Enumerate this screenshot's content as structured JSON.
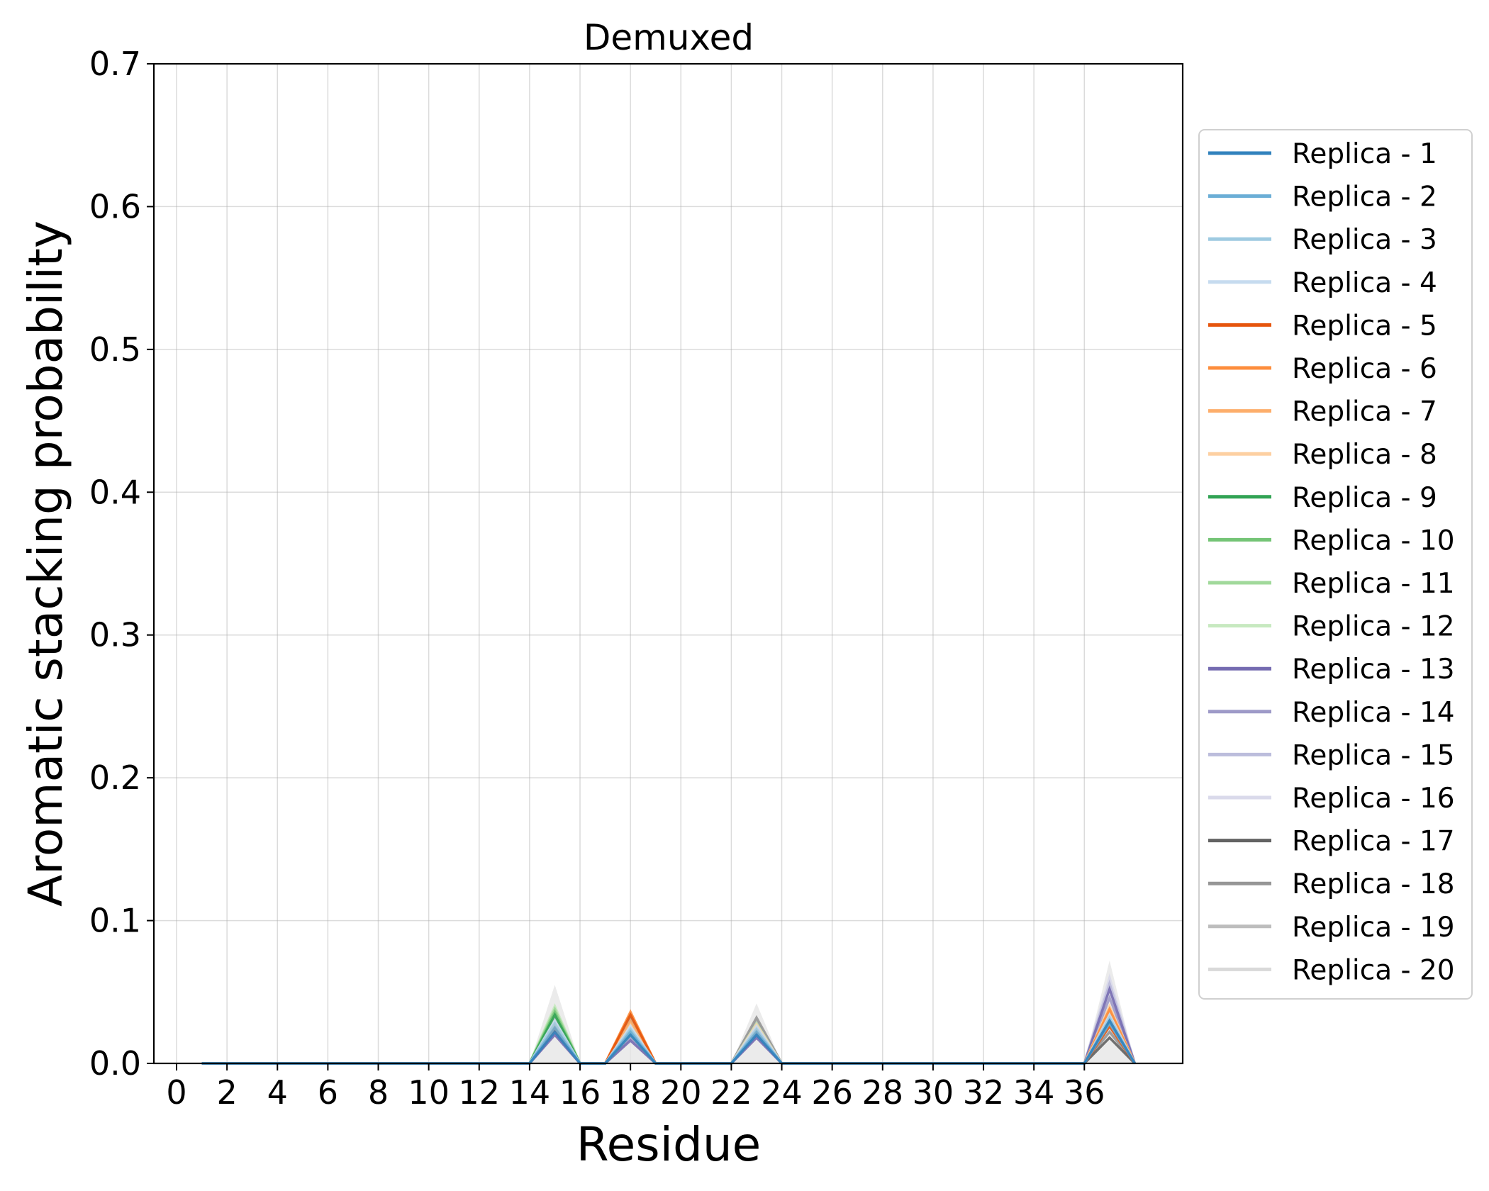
{
  "chart_data": {
    "type": "line",
    "title": "Demuxed",
    "xlabel": "Residue",
    "ylabel": "Aromatic stacking probability",
    "xlim": [
      -0.9,
      39.9
    ],
    "ylim": [
      0.0,
      0.7
    ],
    "xticks": [
      0,
      2,
      4,
      6,
      8,
      10,
      12,
      14,
      16,
      18,
      20,
      22,
      24,
      26,
      28,
      30,
      32,
      34,
      36
    ],
    "xtick_labels": [
      "0",
      "2",
      "4",
      "6",
      "8",
      "10",
      "12",
      "14",
      "16",
      "18",
      "20",
      "22",
      "24",
      "26",
      "28",
      "30",
      "32",
      "34",
      "36"
    ],
    "yticks": [
      0.0,
      0.1,
      0.2,
      0.3,
      0.4,
      0.5,
      0.6,
      0.7
    ],
    "ytick_labels": [
      "0.0",
      "0.1",
      "0.2",
      "0.3",
      "0.4",
      "0.5",
      "0.6",
      "0.7"
    ],
    "grid": true,
    "legend_position": "outside-right",
    "x": [
      1,
      2,
      3,
      4,
      5,
      6,
      7,
      8,
      9,
      10,
      11,
      12,
      13,
      14,
      15,
      16,
      17,
      18,
      19,
      20,
      21,
      22,
      23,
      24,
      25,
      26,
      27,
      28,
      29,
      30,
      31,
      32,
      33,
      34,
      35,
      36,
      37,
      38
    ],
    "band": {
      "color": "#e6e6e6",
      "upper": [
        0,
        0,
        0,
        0,
        0,
        0,
        0,
        0,
        0,
        0,
        0,
        0,
        0,
        0,
        0.055,
        0,
        0,
        0.038,
        0,
        0,
        0,
        0,
        0.042,
        0,
        0,
        0,
        0,
        0,
        0,
        0,
        0,
        0,
        0,
        0,
        0,
        0,
        0.072,
        0
      ]
    },
    "series": [
      {
        "name": "Replica - 1",
        "color": "#3182bd",
        "values": [
          0,
          0,
          0,
          0,
          0,
          0,
          0,
          0,
          0,
          0,
          0,
          0,
          0,
          0,
          0.022,
          0,
          0,
          0.02,
          0,
          0,
          0,
          0,
          0.02,
          0,
          0,
          0,
          0,
          0,
          0,
          0,
          0,
          0,
          0,
          0,
          0,
          0,
          0.03,
          0
        ]
      },
      {
        "name": "Replica - 2",
        "color": "#6baed6",
        "values": [
          0,
          0,
          0,
          0,
          0,
          0,
          0,
          0,
          0,
          0,
          0,
          0,
          0,
          0,
          0.025,
          0,
          0,
          0.022,
          0,
          0,
          0,
          0,
          0.022,
          0,
          0,
          0,
          0,
          0,
          0,
          0,
          0,
          0,
          0,
          0,
          0,
          0,
          0.028,
          0
        ]
      },
      {
        "name": "Replica - 3",
        "color": "#9ecae1",
        "values": [
          0,
          0,
          0,
          0,
          0,
          0,
          0,
          0,
          0,
          0,
          0,
          0,
          0,
          0,
          0.028,
          0,
          0,
          0.024,
          0,
          0,
          0,
          0,
          0.024,
          0,
          0,
          0,
          0,
          0,
          0,
          0,
          0,
          0,
          0,
          0,
          0,
          0,
          0.032,
          0
        ]
      },
      {
        "name": "Replica - 4",
        "color": "#c6dbef",
        "values": [
          0,
          0,
          0,
          0,
          0,
          0,
          0,
          0,
          0,
          0,
          0,
          0,
          0,
          0,
          0.03,
          0,
          0,
          0.026,
          0,
          0,
          0,
          0,
          0.026,
          0,
          0,
          0,
          0,
          0,
          0,
          0,
          0,
          0,
          0,
          0,
          0,
          0,
          0.034,
          0
        ]
      },
      {
        "name": "Replica - 5",
        "color": "#e6550d",
        "values": [
          0,
          0,
          0,
          0,
          0,
          0,
          0,
          0,
          0,
          0,
          0,
          0,
          0,
          0,
          0.024,
          0,
          0,
          0.034,
          0,
          0,
          0,
          0,
          0.022,
          0,
          0,
          0,
          0,
          0,
          0,
          0,
          0,
          0,
          0,
          0,
          0,
          0,
          0.026,
          0
        ]
      },
      {
        "name": "Replica - 6",
        "color": "#fd8d3c",
        "values": [
          0,
          0,
          0,
          0,
          0,
          0,
          0,
          0,
          0,
          0,
          0,
          0,
          0,
          0,
          0.026,
          0,
          0,
          0.036,
          0,
          0,
          0,
          0,
          0.024,
          0,
          0,
          0,
          0,
          0,
          0,
          0,
          0,
          0,
          0,
          0,
          0,
          0,
          0.038,
          0
        ]
      },
      {
        "name": "Replica - 7",
        "color": "#fdae6b",
        "values": [
          0,
          0,
          0,
          0,
          0,
          0,
          0,
          0,
          0,
          0,
          0,
          0,
          0,
          0,
          0.027,
          0,
          0,
          0.03,
          0,
          0,
          0,
          0,
          0.025,
          0,
          0,
          0,
          0,
          0,
          0,
          0,
          0,
          0,
          0,
          0,
          0,
          0,
          0.036,
          0
        ]
      },
      {
        "name": "Replica - 8",
        "color": "#fdd0a2",
        "values": [
          0,
          0,
          0,
          0,
          0,
          0,
          0,
          0,
          0,
          0,
          0,
          0,
          0,
          0,
          0.029,
          0,
          0,
          0.028,
          0,
          0,
          0,
          0,
          0.027,
          0,
          0,
          0,
          0,
          0,
          0,
          0,
          0,
          0,
          0,
          0,
          0,
          0,
          0.04,
          0
        ]
      },
      {
        "name": "Replica - 9",
        "color": "#31a354",
        "values": [
          0,
          0,
          0,
          0,
          0,
          0,
          0,
          0,
          0,
          0,
          0,
          0,
          0,
          0,
          0.034,
          0,
          0,
          0.024,
          0,
          0,
          0,
          0,
          0.024,
          0,
          0,
          0,
          0,
          0,
          0,
          0,
          0,
          0,
          0,
          0,
          0,
          0,
          0.028,
          0
        ]
      },
      {
        "name": "Replica - 10",
        "color": "#74c476",
        "values": [
          0,
          0,
          0,
          0,
          0,
          0,
          0,
          0,
          0,
          0,
          0,
          0,
          0,
          0,
          0.036,
          0,
          0,
          0.022,
          0,
          0,
          0,
          0,
          0.022,
          0,
          0,
          0,
          0,
          0,
          0,
          0,
          0,
          0,
          0,
          0,
          0,
          0,
          0.03,
          0
        ]
      },
      {
        "name": "Replica - 11",
        "color": "#a1d99b",
        "values": [
          0,
          0,
          0,
          0,
          0,
          0,
          0,
          0,
          0,
          0,
          0,
          0,
          0,
          0,
          0.038,
          0,
          0,
          0.02,
          0,
          0,
          0,
          0,
          0.026,
          0,
          0,
          0,
          0,
          0,
          0,
          0,
          0,
          0,
          0,
          0,
          0,
          0,
          0.032,
          0
        ]
      },
      {
        "name": "Replica - 12",
        "color": "#c7e9c0",
        "values": [
          0,
          0,
          0,
          0,
          0,
          0,
          0,
          0,
          0,
          0,
          0,
          0,
          0,
          0,
          0.04,
          0,
          0,
          0.024,
          0,
          0,
          0,
          0,
          0.028,
          0,
          0,
          0,
          0,
          0,
          0,
          0,
          0,
          0,
          0,
          0,
          0,
          0,
          0.034,
          0
        ]
      },
      {
        "name": "Replica - 13",
        "color": "#756bb1",
        "values": [
          0,
          0,
          0,
          0,
          0,
          0,
          0,
          0,
          0,
          0,
          0,
          0,
          0,
          0,
          0.02,
          0,
          0,
          0.016,
          0,
          0,
          0,
          0,
          0.018,
          0,
          0,
          0,
          0,
          0,
          0,
          0,
          0,
          0,
          0,
          0,
          0,
          0,
          0.052,
          0
        ]
      },
      {
        "name": "Replica - 14",
        "color": "#9e9ac8",
        "values": [
          0,
          0,
          0,
          0,
          0,
          0,
          0,
          0,
          0,
          0,
          0,
          0,
          0,
          0,
          0.022,
          0,
          0,
          0.018,
          0,
          0,
          0,
          0,
          0.02,
          0,
          0,
          0,
          0,
          0,
          0,
          0,
          0,
          0,
          0,
          0,
          0,
          0,
          0.046,
          0
        ]
      },
      {
        "name": "Replica - 15",
        "color": "#bcbddc",
        "values": [
          0,
          0,
          0,
          0,
          0,
          0,
          0,
          0,
          0,
          0,
          0,
          0,
          0,
          0,
          0.024,
          0,
          0,
          0.02,
          0,
          0,
          0,
          0,
          0.022,
          0,
          0,
          0,
          0,
          0,
          0,
          0,
          0,
          0,
          0,
          0,
          0,
          0,
          0.056,
          0
        ]
      },
      {
        "name": "Replica - 16",
        "color": "#dadaeb",
        "values": [
          0,
          0,
          0,
          0,
          0,
          0,
          0,
          0,
          0,
          0,
          0,
          0,
          0,
          0,
          0.026,
          0,
          0,
          0.022,
          0,
          0,
          0,
          0,
          0.024,
          0,
          0,
          0,
          0,
          0,
          0,
          0,
          0,
          0,
          0,
          0,
          0,
          0,
          0.06,
          0
        ]
      },
      {
        "name": "Replica - 17",
        "color": "#636363",
        "values": [
          0,
          0,
          0,
          0,
          0,
          0,
          0,
          0,
          0,
          0,
          0,
          0,
          0,
          0,
          0.026,
          0,
          0,
          0.03,
          0,
          0,
          0,
          0,
          0.028,
          0,
          0,
          0,
          0,
          0,
          0,
          0,
          0,
          0,
          0,
          0,
          0,
          0,
          0.018,
          0
        ]
      },
      {
        "name": "Replica - 18",
        "color": "#969696",
        "values": [
          0,
          0,
          0,
          0,
          0,
          0,
          0,
          0,
          0,
          0,
          0,
          0,
          0,
          0,
          0.03,
          0,
          0,
          0.032,
          0,
          0,
          0,
          0,
          0.032,
          0,
          0,
          0,
          0,
          0,
          0,
          0,
          0,
          0,
          0,
          0,
          0,
          0,
          0.022,
          0
        ]
      },
      {
        "name": "Replica - 19",
        "color": "#bdbdbd",
        "values": [
          0,
          0,
          0,
          0,
          0,
          0,
          0,
          0,
          0,
          0,
          0,
          0,
          0,
          0,
          0.032,
          0,
          0,
          0.026,
          0,
          0,
          0,
          0,
          0.03,
          0,
          0,
          0,
          0,
          0,
          0,
          0,
          0,
          0,
          0,
          0,
          0,
          0,
          0.028,
          0
        ]
      },
      {
        "name": "Replica - 20",
        "color": "#d9d9d9",
        "values": [
          0,
          0,
          0,
          0,
          0,
          0,
          0,
          0,
          0,
          0,
          0,
          0,
          0,
          0,
          0.03,
          0,
          0,
          0.024,
          0,
          0,
          0,
          0,
          0.026,
          0,
          0,
          0,
          0,
          0,
          0,
          0,
          0,
          0,
          0,
          0,
          0,
          0,
          0.024,
          0
        ]
      }
    ]
  }
}
